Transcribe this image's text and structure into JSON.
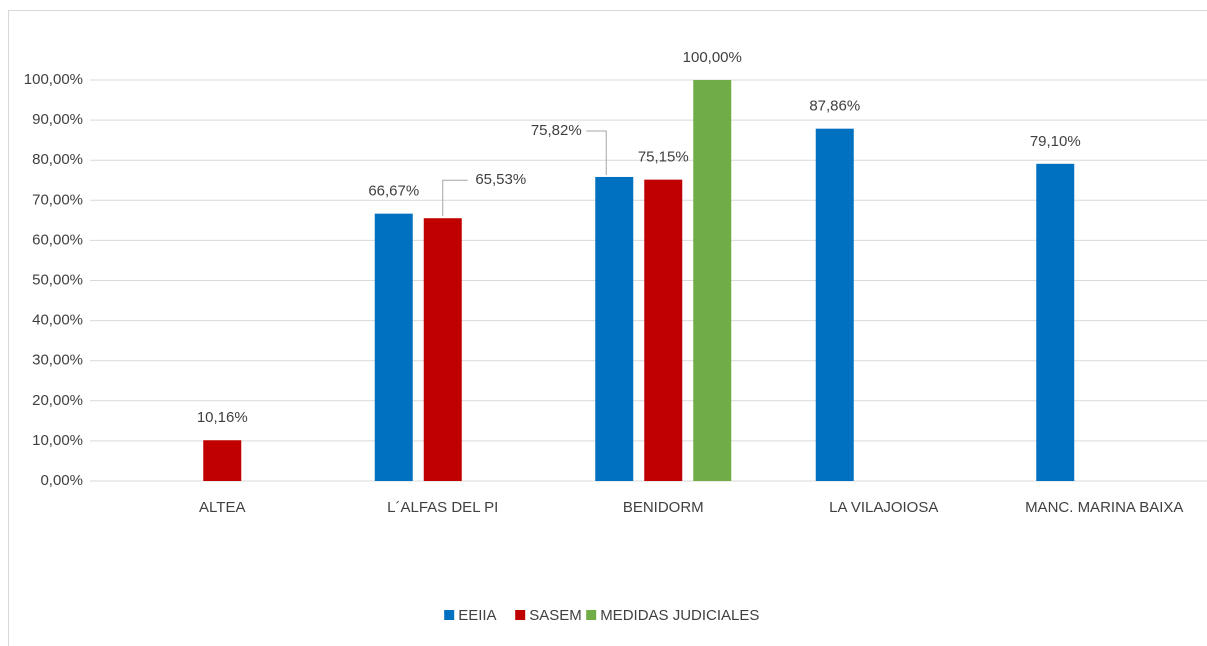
{
  "chart_data": {
    "type": "bar",
    "categories": [
      "ALTEA",
      "L´ALFAS DEL PI",
      "BENIDORM",
      "LA VILAJOIOSA",
      "MANC. MARINA BAIXA"
    ],
    "series": [
      {
        "name": "EEIIA",
        "color": "#0070c0",
        "values": [
          null,
          66.67,
          75.82,
          87.86,
          79.1
        ],
        "value_labels": [
          null,
          "66,67%",
          "75,82%",
          "87,86%",
          "79,10%"
        ]
      },
      {
        "name": "SASEM",
        "color": "#c00000",
        "values": [
          10.16,
          65.53,
          75.15,
          null,
          null
        ],
        "value_labels": [
          "10,16%",
          "65,53%",
          "75,15%",
          null,
          null
        ]
      },
      {
        "name": "MEDIDAS JUDICIALES",
        "color": "#70ad47",
        "values": [
          null,
          null,
          100,
          null,
          null
        ],
        "value_labels": [
          null,
          null,
          "100,00%",
          null,
          null
        ]
      }
    ],
    "ylim": [
      0,
      100
    ],
    "yticks": [
      {
        "value": 0,
        "label": "0,00%"
      },
      {
        "value": 10,
        "label": "10,00%"
      },
      {
        "value": 20,
        "label": "20,00%"
      },
      {
        "value": 30,
        "label": "30,00%"
      },
      {
        "value": 40,
        "label": "40,00%"
      },
      {
        "value": 50,
        "label": "50,00%"
      },
      {
        "value": 60,
        "label": "60,00%"
      },
      {
        "value": 70,
        "label": "70,00%"
      },
      {
        "value": 80,
        "label": "80,00%"
      },
      {
        "value": 90,
        "label": "90,00%"
      },
      {
        "value": 100,
        "label": "100,00%"
      }
    ],
    "grid": true,
    "legend": "bottom"
  }
}
